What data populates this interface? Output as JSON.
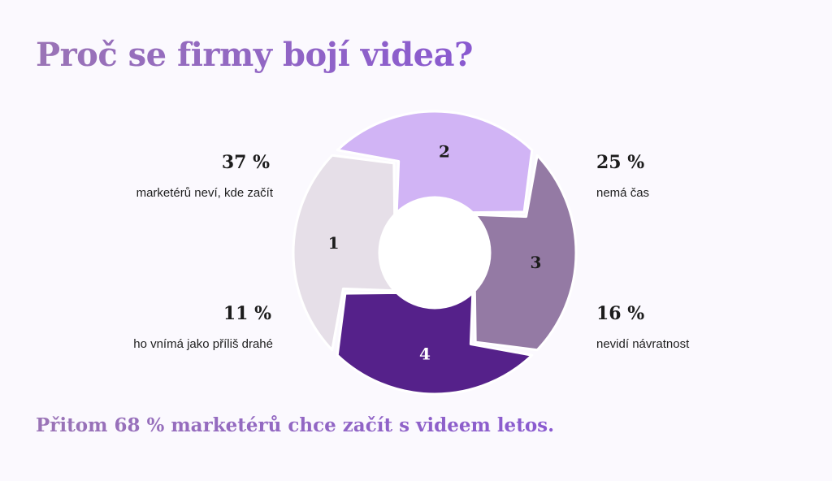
{
  "title": "Proč se firmy bojí videa?",
  "footer": "Přitom 68 % marketérů chce začít s videem letos.",
  "chart_data": {
    "type": "donut",
    "segments": [
      {
        "label": "1",
        "value": 37,
        "value_text": "37 %",
        "description": "marketérů neví, kde začít",
        "color": "#e6dfe8",
        "label_color": "#1c1c1c"
      },
      {
        "label": "2",
        "value": 25,
        "value_text": "25 %",
        "description": "nemá čas",
        "color": "#d1b4f5",
        "label_color": "#1c1c1c"
      },
      {
        "label": "3",
        "value": 16,
        "value_text": "16 %",
        "description": "nevidí návratnost",
        "color": "#947aa4",
        "label_color": "#1c1c1c"
      },
      {
        "label": "4",
        "value": 11,
        "value_text": "11 %",
        "description": "ho vnímá jako příliš drahé",
        "color": "#55218a",
        "label_color": "#ffffff"
      }
    ]
  },
  "colors": {
    "background": "#fbf9fe",
    "accent": "#9a74b6",
    "accent_end": "#8a5ad0"
  }
}
